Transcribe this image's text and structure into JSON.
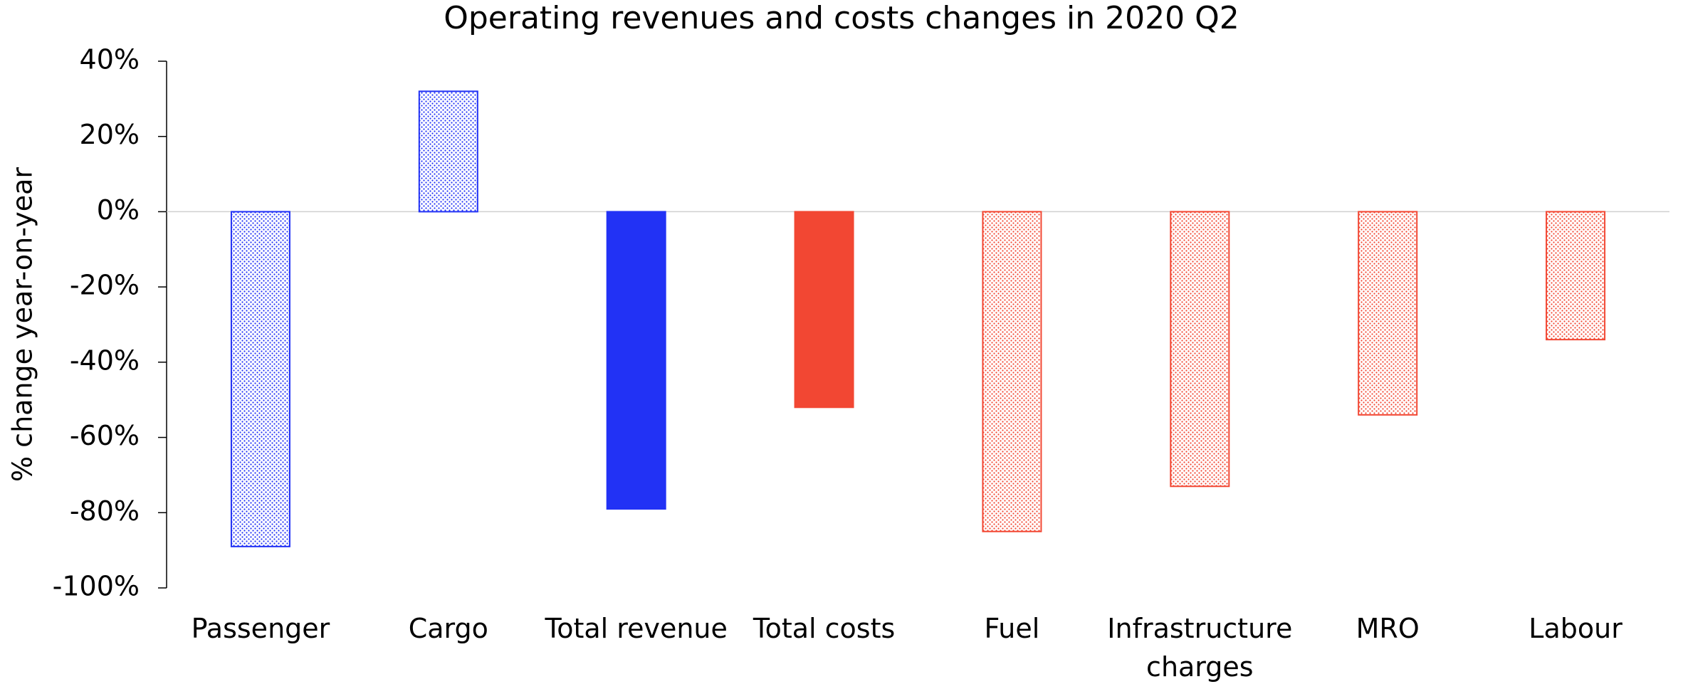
{
  "chart_data": {
    "type": "bar",
    "title": "Operating revenues and costs changes in 2020 Q2",
    "y_label": "% change year-on-year",
    "categories": [
      "Passenger",
      "Cargo",
      "Total revenue",
      "Total costs",
      "Fuel",
      "Infrastructure charges",
      "MRO",
      "Labour"
    ],
    "values": [
      -89,
      32,
      -79,
      -52,
      -85,
      -73,
      -54,
      -34
    ],
    "colors": [
      "#2232f5",
      "#2232f5",
      "#2232f5",
      "#f24733",
      "#f24733",
      "#f24733",
      "#f24733",
      "#f24733"
    ],
    "patterns": [
      "dots",
      "dots",
      "solid",
      "solid",
      "dots",
      "dots",
      "dots",
      "dots"
    ],
    "ylim": [
      -100,
      40
    ],
    "yticks": [
      {
        "value": -100,
        "label": "-100%"
      },
      {
        "value": -80,
        "label": "-80%"
      },
      {
        "value": -60,
        "label": "-60%"
      },
      {
        "value": -40,
        "label": "-40%"
      },
      {
        "value": -20,
        "label": "-20%"
      },
      {
        "value": 0,
        "label": "0%"
      },
      {
        "value": 20,
        "label": "20%"
      },
      {
        "value": 40,
        "label": "40%"
      }
    ],
    "grid": false
  }
}
